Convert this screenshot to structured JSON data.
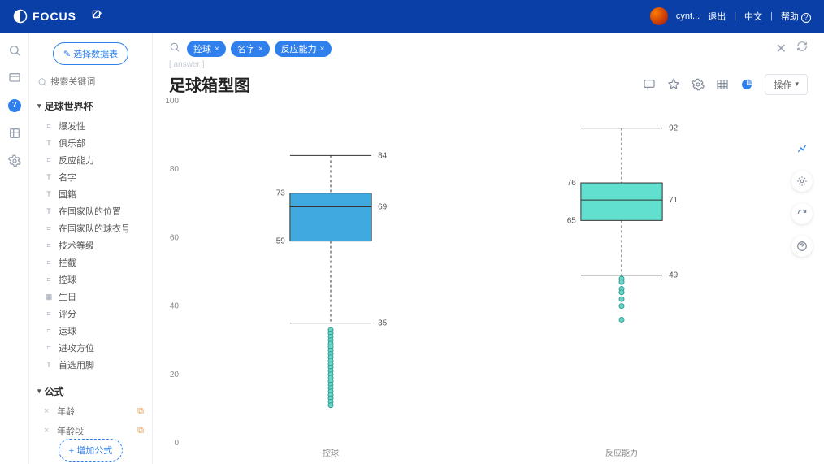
{
  "header": {
    "brand": "FOCUS",
    "username": "cynt...",
    "logout": "退出",
    "lang": "中文",
    "help": "帮助"
  },
  "sidebar": {
    "select_ds": "选择数据表",
    "search_placeholder": "搜索关键词",
    "section": "足球世界杯",
    "fields": [
      {
        "t": "num",
        "label": "爆发性"
      },
      {
        "t": "txt",
        "label": "俱乐部"
      },
      {
        "t": "num",
        "label": "反应能力"
      },
      {
        "t": "txt",
        "label": "名字"
      },
      {
        "t": "txt",
        "label": "国籍"
      },
      {
        "t": "txt",
        "label": "在国家队的位置"
      },
      {
        "t": "num",
        "label": "在国家队的球衣号"
      },
      {
        "t": "num",
        "label": "技术等级"
      },
      {
        "t": "num",
        "label": "拦截"
      },
      {
        "t": "num",
        "label": "控球"
      },
      {
        "t": "date",
        "label": "生日"
      },
      {
        "t": "num",
        "label": "评分"
      },
      {
        "t": "num",
        "label": "运球"
      },
      {
        "t": "num",
        "label": "进攻方位"
      },
      {
        "t": "txt",
        "label": "首选用脚"
      }
    ],
    "formula_title": "公式",
    "formulas": [
      {
        "label": "年龄"
      },
      {
        "label": "年龄段"
      }
    ],
    "add_formula": "增加公式"
  },
  "main": {
    "chips": [
      "控球",
      "名字",
      "反应能力"
    ],
    "crumb": "[ answer ]",
    "title": "足球箱型图",
    "op_label": "操作"
  },
  "chart": {
    "type": "boxplot",
    "background": "#ffffff",
    "ylim": [
      0,
      100
    ],
    "ytick_step": 20,
    "axis_color": "#dcdfe5",
    "tick_font": 10,
    "tick_color": "#888888",
    "category_font": 10,
    "dash": "3,3",
    "box_border": "#333333",
    "label_font": 10,
    "label_color": "#555555",
    "outlier_fill": "#6fd3c7",
    "outlier_stroke": "#2aa296",
    "outlier_r": 3,
    "series": [
      {
        "name": "控球",
        "fill": "#3fa9e0",
        "min": 35,
        "q1": 59,
        "median": 69,
        "q3": 73,
        "max": 84,
        "outliers": [
          33,
          32,
          31,
          30,
          29,
          28,
          27,
          26,
          25,
          24,
          23,
          22,
          21,
          20,
          19,
          18,
          17,
          16,
          15,
          14,
          13,
          12,
          11
        ]
      },
      {
        "name": "反应能力",
        "fill": "#62e0cf",
        "min": 49,
        "q1": 65,
        "median": 71,
        "q3": 76,
        "max": 92,
        "outliers": [
          48,
          47,
          45,
          44,
          42,
          40,
          36
        ]
      }
    ]
  }
}
